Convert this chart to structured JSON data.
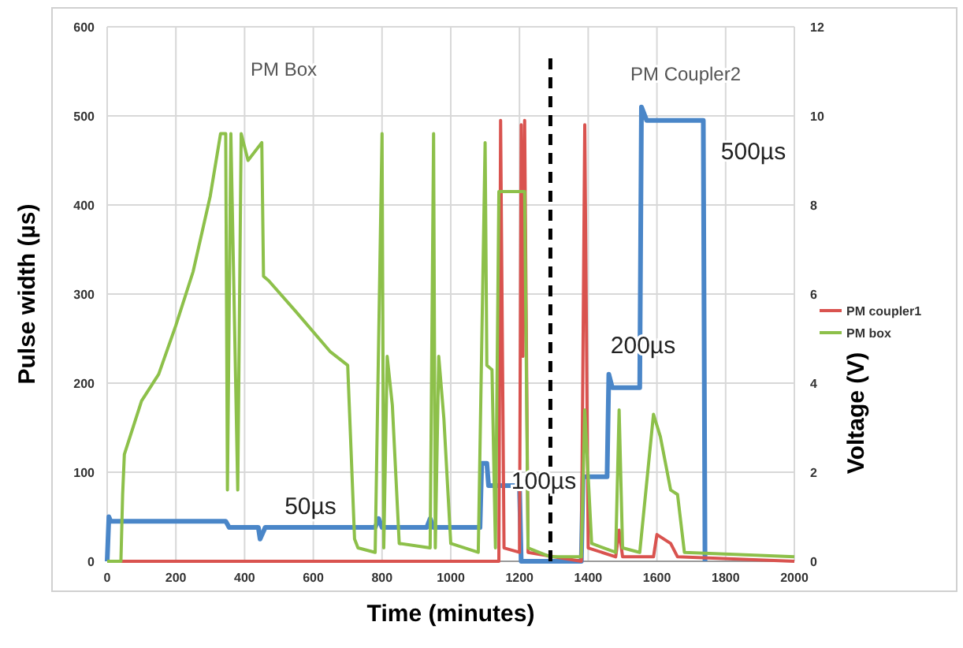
{
  "chart_data": {
    "type": "line",
    "xlabel": "Time (minutes)",
    "ylabel": "Pulse width (µs)",
    "y2label": "Voltage (V)",
    "xlim": [
      0,
      2000
    ],
    "xticks": [
      0,
      200,
      400,
      600,
      800,
      1000,
      1200,
      1400,
      1600,
      1800,
      2000
    ],
    "ylim": [
      0,
      600
    ],
    "yticks": [
      0,
      100,
      200,
      300,
      400,
      500,
      600
    ],
    "y2lim": [
      0,
      12
    ],
    "y2ticks": [
      0,
      2,
      4,
      6,
      8,
      10,
      12
    ],
    "grid": true,
    "legend": "right",
    "line_style": "solid",
    "marker": "none",
    "ref_lines": [
      {
        "axis": "x",
        "value": 1290,
        "label": null,
        "color": "#000000",
        "line_style": "dashed"
      }
    ],
    "annotations": [
      "PM Box",
      "PM Coupler2",
      "50µs",
      "100µs",
      "200µs",
      "500µs"
    ],
    "series": [
      {
        "color": "#4a86c8",
        "x": [
          0,
          5,
          10,
          345,
          355,
          440,
          445,
          460,
          780,
          790,
          800,
          930,
          940,
          950,
          1085,
          1090,
          1105,
          1110,
          1200,
          1205,
          1380,
          1385,
          1455,
          1460,
          1470,
          1550,
          1555,
          1570,
          1735,
          1740
        ],
        "values": [
          0,
          50,
          45,
          45,
          38,
          38,
          25,
          38,
          38,
          48,
          38,
          38,
          48,
          38,
          38,
          110,
          110,
          85,
          85,
          0,
          0,
          95,
          95,
          210,
          195,
          195,
          510,
          495,
          495,
          0
        ]
      },
      {
        "name": "PM coupler1",
        "color": "#d9534f",
        "axis": "y2",
        "x": [
          0,
          1140,
          1145,
          1155,
          1200,
          1205,
          1210,
          1215,
          1225,
          1380,
          1390,
          1400,
          1480,
          1490,
          1500,
          1590,
          1600,
          1640,
          1660,
          2000
        ],
        "values": [
          0,
          0,
          9.9,
          0.3,
          0.2,
          9.8,
          4.6,
          9.9,
          0.2,
          0,
          9.8,
          0.3,
          0.1,
          0.7,
          0.1,
          0.1,
          0.6,
          0.4,
          0.1,
          0
        ]
      },
      {
        "name": "PM box",
        "color": "#8dc04a",
        "axis": "y2",
        "x": [
          0,
          40,
          45,
          50,
          100,
          150,
          200,
          250,
          300,
          330,
          345,
          350,
          360,
          380,
          390,
          410,
          450,
          455,
          470,
          550,
          650,
          700,
          720,
          730,
          780,
          800,
          805,
          815,
          830,
          850,
          940,
          950,
          955,
          965,
          980,
          1000,
          1080,
          1100,
          1105,
          1120,
          1130,
          1140,
          1215,
          1225,
          1290,
          1380,
          1390,
          1410,
          1480,
          1490,
          1500,
          1550,
          1590,
          1610,
          1640,
          1660,
          1680,
          2000
        ],
        "values": [
          0,
          0,
          1.5,
          2.4,
          3.6,
          4.2,
          5.3,
          6.5,
          8.2,
          9.6,
          9.6,
          1.6,
          9.6,
          1.6,
          9.6,
          9,
          9.4,
          6.4,
          6.3,
          5.6,
          4.7,
          4.4,
          0.5,
          0.3,
          0.2,
          9.6,
          0.3,
          4.6,
          3.5,
          0.4,
          0.3,
          9.6,
          0.3,
          4.6,
          3.2,
          0.4,
          0.2,
          9.4,
          4.4,
          4.3,
          0.3,
          8.3,
          8.3,
          0.3,
          0.1,
          0.1,
          3.4,
          0.4,
          0.2,
          3.4,
          0.3,
          0.2,
          3.3,
          2.8,
          1.6,
          1.5,
          0.2,
          0.1
        ]
      }
    ]
  }
}
